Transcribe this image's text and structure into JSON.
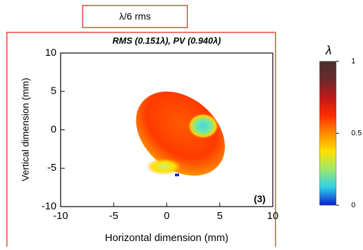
{
  "chart_data": {
    "type": "heatmap",
    "header": "λ/6 rms",
    "title": "RMS (0.151λ), PV (0.940λ)",
    "x_label": "Horizontal dimension (mm)",
    "y_label": "Vertical dimension (mm)",
    "annotation": "(3)",
    "xlim": [
      -10,
      10
    ],
    "ylim": [
      -10,
      10
    ],
    "xticks": [
      -10,
      -5,
      0,
      5,
      10
    ],
    "yticks": [
      -10,
      -5,
      0,
      5,
      10
    ],
    "colorbar": {
      "label": "λ",
      "lim": [
        0,
        1
      ],
      "ticks": [
        0,
        0.5,
        1
      ],
      "colors": [
        "#0a1fd0",
        "#2fd0e8",
        "#9ee86a",
        "#ffe000",
        "#ff8a00",
        "#ff2a00",
        "#c01818",
        "#6a2a2a",
        "#4a3030"
      ]
    }
  }
}
